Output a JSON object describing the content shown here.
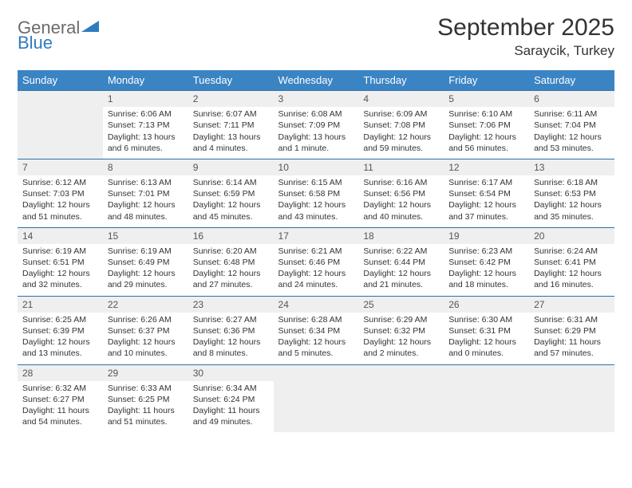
{
  "branding": {
    "logo_general": "General",
    "logo_blue": "Blue",
    "logo_color_gray": "#6b6b6b",
    "logo_color_blue": "#2f7bbf"
  },
  "header": {
    "title": "September 2025",
    "location": "Saraycik, Turkey"
  },
  "day_headers": [
    "Sunday",
    "Monday",
    "Tuesday",
    "Wednesday",
    "Thursday",
    "Friday",
    "Saturday"
  ],
  "style": {
    "header_bg": "#3b84c4",
    "header_fg": "#ffffff",
    "row_sep": "#2f6fa8",
    "shaded_bg": "#efefef",
    "body_font_size": 10.5,
    "daynum_color": "#555555"
  },
  "weeks": [
    [
      null,
      {
        "n": "1",
        "sr": "Sunrise: 6:06 AM",
        "ss": "Sunset: 7:13 PM",
        "d1": "Daylight: 13 hours",
        "d2": "and 6 minutes."
      },
      {
        "n": "2",
        "sr": "Sunrise: 6:07 AM",
        "ss": "Sunset: 7:11 PM",
        "d1": "Daylight: 13 hours",
        "d2": "and 4 minutes."
      },
      {
        "n": "3",
        "sr": "Sunrise: 6:08 AM",
        "ss": "Sunset: 7:09 PM",
        "d1": "Daylight: 13 hours",
        "d2": "and 1 minute."
      },
      {
        "n": "4",
        "sr": "Sunrise: 6:09 AM",
        "ss": "Sunset: 7:08 PM",
        "d1": "Daylight: 12 hours",
        "d2": "and 59 minutes."
      },
      {
        "n": "5",
        "sr": "Sunrise: 6:10 AM",
        "ss": "Sunset: 7:06 PM",
        "d1": "Daylight: 12 hours",
        "d2": "and 56 minutes."
      },
      {
        "n": "6",
        "sr": "Sunrise: 6:11 AM",
        "ss": "Sunset: 7:04 PM",
        "d1": "Daylight: 12 hours",
        "d2": "and 53 minutes."
      }
    ],
    [
      {
        "n": "7",
        "sr": "Sunrise: 6:12 AM",
        "ss": "Sunset: 7:03 PM",
        "d1": "Daylight: 12 hours",
        "d2": "and 51 minutes."
      },
      {
        "n": "8",
        "sr": "Sunrise: 6:13 AM",
        "ss": "Sunset: 7:01 PM",
        "d1": "Daylight: 12 hours",
        "d2": "and 48 minutes."
      },
      {
        "n": "9",
        "sr": "Sunrise: 6:14 AM",
        "ss": "Sunset: 6:59 PM",
        "d1": "Daylight: 12 hours",
        "d2": "and 45 minutes."
      },
      {
        "n": "10",
        "sr": "Sunrise: 6:15 AM",
        "ss": "Sunset: 6:58 PM",
        "d1": "Daylight: 12 hours",
        "d2": "and 43 minutes."
      },
      {
        "n": "11",
        "sr": "Sunrise: 6:16 AM",
        "ss": "Sunset: 6:56 PM",
        "d1": "Daylight: 12 hours",
        "d2": "and 40 minutes."
      },
      {
        "n": "12",
        "sr": "Sunrise: 6:17 AM",
        "ss": "Sunset: 6:54 PM",
        "d1": "Daylight: 12 hours",
        "d2": "and 37 minutes."
      },
      {
        "n": "13",
        "sr": "Sunrise: 6:18 AM",
        "ss": "Sunset: 6:53 PM",
        "d1": "Daylight: 12 hours",
        "d2": "and 35 minutes."
      }
    ],
    [
      {
        "n": "14",
        "sr": "Sunrise: 6:19 AM",
        "ss": "Sunset: 6:51 PM",
        "d1": "Daylight: 12 hours",
        "d2": "and 32 minutes."
      },
      {
        "n": "15",
        "sr": "Sunrise: 6:19 AM",
        "ss": "Sunset: 6:49 PM",
        "d1": "Daylight: 12 hours",
        "d2": "and 29 minutes."
      },
      {
        "n": "16",
        "sr": "Sunrise: 6:20 AM",
        "ss": "Sunset: 6:48 PM",
        "d1": "Daylight: 12 hours",
        "d2": "and 27 minutes."
      },
      {
        "n": "17",
        "sr": "Sunrise: 6:21 AM",
        "ss": "Sunset: 6:46 PM",
        "d1": "Daylight: 12 hours",
        "d2": "and 24 minutes."
      },
      {
        "n": "18",
        "sr": "Sunrise: 6:22 AM",
        "ss": "Sunset: 6:44 PM",
        "d1": "Daylight: 12 hours",
        "d2": "and 21 minutes."
      },
      {
        "n": "19",
        "sr": "Sunrise: 6:23 AM",
        "ss": "Sunset: 6:42 PM",
        "d1": "Daylight: 12 hours",
        "d2": "and 18 minutes."
      },
      {
        "n": "20",
        "sr": "Sunrise: 6:24 AM",
        "ss": "Sunset: 6:41 PM",
        "d1": "Daylight: 12 hours",
        "d2": "and 16 minutes."
      }
    ],
    [
      {
        "n": "21",
        "sr": "Sunrise: 6:25 AM",
        "ss": "Sunset: 6:39 PM",
        "d1": "Daylight: 12 hours",
        "d2": "and 13 minutes."
      },
      {
        "n": "22",
        "sr": "Sunrise: 6:26 AM",
        "ss": "Sunset: 6:37 PM",
        "d1": "Daylight: 12 hours",
        "d2": "and 10 minutes."
      },
      {
        "n": "23",
        "sr": "Sunrise: 6:27 AM",
        "ss": "Sunset: 6:36 PM",
        "d1": "Daylight: 12 hours",
        "d2": "and 8 minutes."
      },
      {
        "n": "24",
        "sr": "Sunrise: 6:28 AM",
        "ss": "Sunset: 6:34 PM",
        "d1": "Daylight: 12 hours",
        "d2": "and 5 minutes."
      },
      {
        "n": "25",
        "sr": "Sunrise: 6:29 AM",
        "ss": "Sunset: 6:32 PM",
        "d1": "Daylight: 12 hours",
        "d2": "and 2 minutes."
      },
      {
        "n": "26",
        "sr": "Sunrise: 6:30 AM",
        "ss": "Sunset: 6:31 PM",
        "d1": "Daylight: 12 hours",
        "d2": "and 0 minutes."
      },
      {
        "n": "27",
        "sr": "Sunrise: 6:31 AM",
        "ss": "Sunset: 6:29 PM",
        "d1": "Daylight: 11 hours",
        "d2": "and 57 minutes."
      }
    ],
    [
      {
        "n": "28",
        "sr": "Sunrise: 6:32 AM",
        "ss": "Sunset: 6:27 PM",
        "d1": "Daylight: 11 hours",
        "d2": "and 54 minutes."
      },
      {
        "n": "29",
        "sr": "Sunrise: 6:33 AM",
        "ss": "Sunset: 6:25 PM",
        "d1": "Daylight: 11 hours",
        "d2": "and 51 minutes."
      },
      {
        "n": "30",
        "sr": "Sunrise: 6:34 AM",
        "ss": "Sunset: 6:24 PM",
        "d1": "Daylight: 11 hours",
        "d2": "and 49 minutes."
      },
      null,
      null,
      null,
      null
    ]
  ]
}
